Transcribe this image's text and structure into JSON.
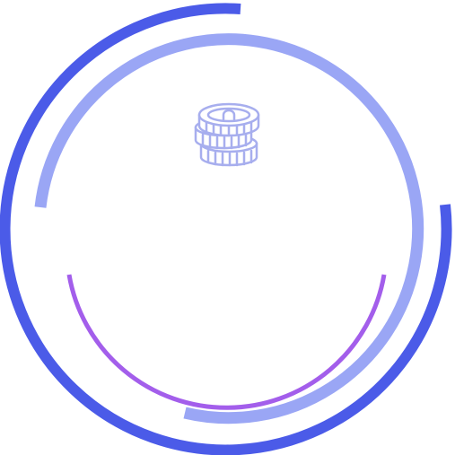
{
  "graphic": {
    "icon": "coin-stack-icon",
    "colors": {
      "outer_ring": "#4B5BE8",
      "middle_ring": "#9AA6F5",
      "inner_arc": "#A35EEB",
      "coin_stroke": "#A7AEEE",
      "background": "#FFFFFF"
    }
  }
}
